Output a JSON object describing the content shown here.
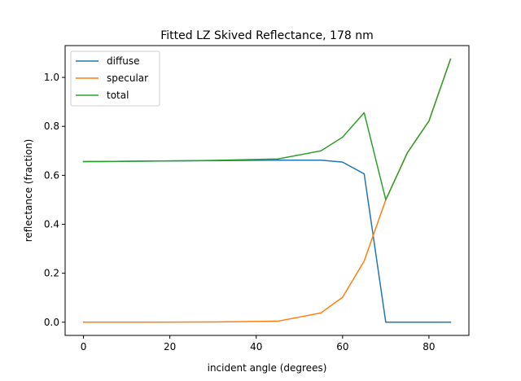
{
  "chart_data": {
    "type": "line",
    "title": "Fitted LZ Skived Reflectance, 178 nm",
    "xlabel": "incident angle (degrees)",
    "ylabel": "reflectance (fraction)",
    "xlim": [
      -4.25,
      89.25
    ],
    "ylim": [
      -0.054,
      1.13
    ],
    "xticks": [
      0,
      20,
      40,
      60,
      80
    ],
    "xtick_labels": [
      "0",
      "20",
      "40",
      "60",
      "80"
    ],
    "yticks": [
      0.0,
      0.2,
      0.4,
      0.6,
      0.8,
      1.0
    ],
    "ytick_labels": [
      "0.0",
      "0.2",
      "0.4",
      "0.6",
      "0.8",
      "1.0"
    ],
    "grid": false,
    "legend_position": "top-left",
    "x": [
      0,
      15,
      30,
      45,
      55,
      60,
      65,
      70,
      75,
      80,
      85
    ],
    "series": [
      {
        "name": "diffuse",
        "color": "#1f77b4",
        "values": [
          0.656,
          0.658,
          0.66,
          0.662,
          0.662,
          0.654,
          0.606,
          0.0,
          0.0,
          0.0,
          0.0
        ]
      },
      {
        "name": "specular",
        "color": "#ff7f0e",
        "values": [
          0.0,
          0.0,
          0.001,
          0.004,
          0.038,
          0.102,
          0.25,
          0.5,
          0.692,
          0.822,
          1.075
        ]
      },
      {
        "name": "total",
        "color": "#2ca02c",
        "values": [
          0.656,
          0.658,
          0.661,
          0.667,
          0.7,
          0.756,
          0.856,
          0.5,
          0.692,
          0.822,
          1.075
        ]
      }
    ]
  }
}
